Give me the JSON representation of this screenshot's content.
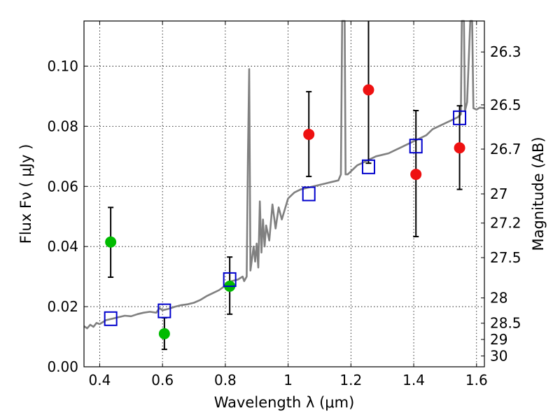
{
  "chart_data": {
    "type": "scatter",
    "title": "",
    "xlabel": "Wavelength  λ (μm)",
    "ylabel": "Flux  Fν  ( μJy )",
    "y2label": "Magnitude (AB)",
    "xlim": [
      0.35,
      1.625
    ],
    "ylim": [
      0.0,
      0.115
    ],
    "grid": true,
    "x_ticks": [
      0.4,
      0.6,
      0.8,
      1.0,
      1.2,
      1.4,
      1.6
    ],
    "x_tick_labels": [
      "0.4",
      "0.6",
      "0.8",
      "1",
      "1.2",
      "1.4",
      "1.6"
    ],
    "y_ticks": [
      0.0,
      0.02,
      0.04,
      0.06,
      0.08,
      0.1
    ],
    "y_tick_labels": [
      "0.00",
      "0.02",
      "0.04",
      "0.06",
      "0.08",
      "0.10"
    ],
    "y2_ticks": [
      {
        "label": "26.3",
        "flux": 0.1047
      },
      {
        "label": "26.5",
        "flux": 0.0871
      },
      {
        "label": "26.7",
        "flux": 0.0724
      },
      {
        "label": "27",
        "flux": 0.0575
      },
      {
        "label": "27.2",
        "flux": 0.0478
      },
      {
        "label": "27.5",
        "flux": 0.0363
      },
      {
        "label": "28",
        "flux": 0.0229
      },
      {
        "label": "28.5",
        "flux": 0.0145
      },
      {
        "label": "29",
        "flux": 0.0091
      },
      {
        "label": "30",
        "flux": 0.0036
      }
    ],
    "series": [
      {
        "marker": "circle",
        "color": "#00bb00",
        "points": [
          {
            "x": 0.435,
            "y": 0.0415,
            "yerr_low": 0.0298,
            "yerr_high": 0.053
          },
          {
            "x": 0.606,
            "y": 0.011,
            "yerr_low": 0.0058,
            "yerr_high": 0.0163
          },
          {
            "x": 0.814,
            "y": 0.0268,
            "yerr_low": 0.0175,
            "yerr_high": 0.0365
          }
        ]
      },
      {
        "marker": "circle",
        "color": "#ee1111",
        "points": [
          {
            "x": 1.066,
            "y": 0.0773,
            "yerr_low": 0.0633,
            "yerr_high": 0.0915
          },
          {
            "x": 1.256,
            "y": 0.0921,
            "yerr_low": 0.0677,
            "yerr_high": 0.115
          },
          {
            "x": 1.407,
            "y": 0.064,
            "yerr_low": 0.0433,
            "yerr_high": 0.0852
          },
          {
            "x": 1.546,
            "y": 0.0728,
            "yerr_low": 0.059,
            "yerr_high": 0.0868
          }
        ]
      },
      {
        "marker": "square",
        "color": "#0000cc",
        "points": [
          {
            "x": 0.435,
            "y": 0.016
          },
          {
            "x": 0.606,
            "y": 0.0186
          },
          {
            "x": 0.814,
            "y": 0.029
          },
          {
            "x": 1.066,
            "y": 0.0575
          },
          {
            "x": 1.256,
            "y": 0.0665
          },
          {
            "x": 1.407,
            "y": 0.0734
          },
          {
            "x": 1.546,
            "y": 0.0828
          }
        ]
      },
      {
        "type": "line",
        "color": "#808080",
        "points": [
          [
            0.35,
            0.0135
          ],
          [
            0.36,
            0.0128
          ],
          [
            0.37,
            0.014
          ],
          [
            0.38,
            0.0133
          ],
          [
            0.39,
            0.0146
          ],
          [
            0.4,
            0.0142
          ],
          [
            0.42,
            0.0155
          ],
          [
            0.44,
            0.016
          ],
          [
            0.46,
            0.0165
          ],
          [
            0.48,
            0.017
          ],
          [
            0.5,
            0.0168
          ],
          [
            0.52,
            0.0175
          ],
          [
            0.54,
            0.018
          ],
          [
            0.56,
            0.0183
          ],
          [
            0.58,
            0.018
          ],
          [
            0.59,
            0.0195
          ],
          [
            0.6,
            0.0188
          ],
          [
            0.62,
            0.0193
          ],
          [
            0.64,
            0.02
          ],
          [
            0.66,
            0.0205
          ],
          [
            0.68,
            0.0208
          ],
          [
            0.7,
            0.0213
          ],
          [
            0.72,
            0.0222
          ],
          [
            0.74,
            0.0235
          ],
          [
            0.76,
            0.0245
          ],
          [
            0.78,
            0.0255
          ],
          [
            0.8,
            0.027
          ],
          [
            0.82,
            0.0285
          ],
          [
            0.84,
            0.029
          ],
          [
            0.855,
            0.03
          ],
          [
            0.86,
            0.0285
          ],
          [
            0.868,
            0.03
          ],
          [
            0.872,
            0.07
          ],
          [
            0.876,
            0.099
          ],
          [
            0.88,
            0.032
          ],
          [
            0.885,
            0.036
          ],
          [
            0.89,
            0.04
          ],
          [
            0.895,
            0.035
          ],
          [
            0.9,
            0.041
          ],
          [
            0.905,
            0.033
          ],
          [
            0.91,
            0.055
          ],
          [
            0.915,
            0.038
          ],
          [
            0.92,
            0.049
          ],
          [
            0.925,
            0.04
          ],
          [
            0.93,
            0.047
          ],
          [
            0.94,
            0.042
          ],
          [
            0.95,
            0.054
          ],
          [
            0.96,
            0.046
          ],
          [
            0.97,
            0.053
          ],
          [
            0.98,
            0.049
          ],
          [
            1.0,
            0.056
          ],
          [
            1.02,
            0.058
          ],
          [
            1.04,
            0.059
          ],
          [
            1.06,
            0.0595
          ],
          [
            1.08,
            0.06
          ],
          [
            1.1,
            0.0605
          ],
          [
            1.12,
            0.061
          ],
          [
            1.14,
            0.0615
          ],
          [
            1.16,
            0.062
          ],
          [
            1.168,
            0.064
          ],
          [
            1.172,
            0.115
          ],
          [
            1.18,
            0.115
          ],
          [
            1.183,
            0.064
          ],
          [
            1.19,
            0.064
          ],
          [
            1.2,
            0.065
          ],
          [
            1.21,
            0.066
          ],
          [
            1.22,
            0.067
          ],
          [
            1.24,
            0.068
          ],
          [
            1.26,
            0.069
          ],
          [
            1.28,
            0.07
          ],
          [
            1.3,
            0.0705
          ],
          [
            1.32,
            0.071
          ],
          [
            1.34,
            0.072
          ],
          [
            1.36,
            0.073
          ],
          [
            1.38,
            0.074
          ],
          [
            1.4,
            0.075
          ],
          [
            1.42,
            0.076
          ],
          [
            1.44,
            0.077
          ],
          [
            1.46,
            0.079
          ],
          [
            1.48,
            0.08
          ],
          [
            1.5,
            0.081
          ],
          [
            1.52,
            0.082
          ],
          [
            1.54,
            0.083
          ],
          [
            1.55,
            0.084
          ],
          [
            1.553,
            0.115
          ],
          [
            1.56,
            0.115
          ],
          [
            1.563,
            0.085
          ],
          [
            1.57,
            0.088
          ],
          [
            1.58,
            0.115
          ],
          [
            1.586,
            0.115
          ],
          [
            1.59,
            0.086
          ],
          [
            1.6,
            0.0855
          ],
          [
            1.61,
            0.0862
          ],
          [
            1.625,
            0.086
          ]
        ]
      }
    ]
  }
}
